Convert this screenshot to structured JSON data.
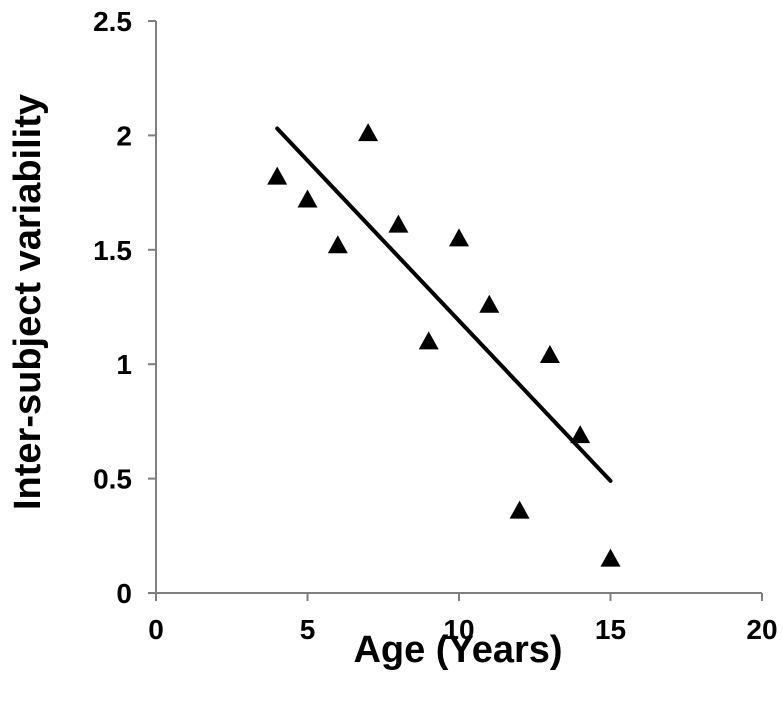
{
  "chart_data": {
    "type": "scatter",
    "title": "",
    "xlabel": "Age (Years)",
    "ylabel": "Inter-subject variability",
    "xlim": [
      0,
      20
    ],
    "ylim": [
      0,
      2.5
    ],
    "x_ticks": [
      "0",
      "5",
      "10",
      "15",
      "20"
    ],
    "y_ticks": [
      "0",
      "0.5",
      "1",
      "1.5",
      "2",
      "2.5"
    ],
    "grid": false,
    "legend": "none",
    "marker": "triangle",
    "marker_color": "#000000",
    "series": [
      {
        "x": [
          4,
          5,
          6,
          7,
          8,
          9,
          10,
          11,
          12,
          13,
          14,
          15
        ],
        "y": [
          1.82,
          1.72,
          1.52,
          2.01,
          1.61,
          1.1,
          1.55,
          1.26,
          0.36,
          1.04,
          0.69,
          0.15
        ]
      }
    ],
    "trendline": {
      "type": "linear",
      "x": [
        4,
        15
      ],
      "y": [
        2.03,
        0.49
      ],
      "color": "#000000"
    }
  }
}
